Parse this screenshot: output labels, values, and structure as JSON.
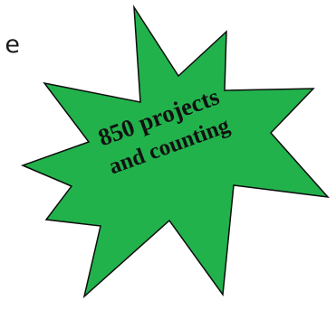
{
  "left_edge_text": "e",
  "starburst": {
    "fill_color": "#22b24c",
    "stroke_color": "#0d0d0d",
    "line1": "850 projects",
    "line2": "and counting",
    "text_color": "#111111"
  }
}
